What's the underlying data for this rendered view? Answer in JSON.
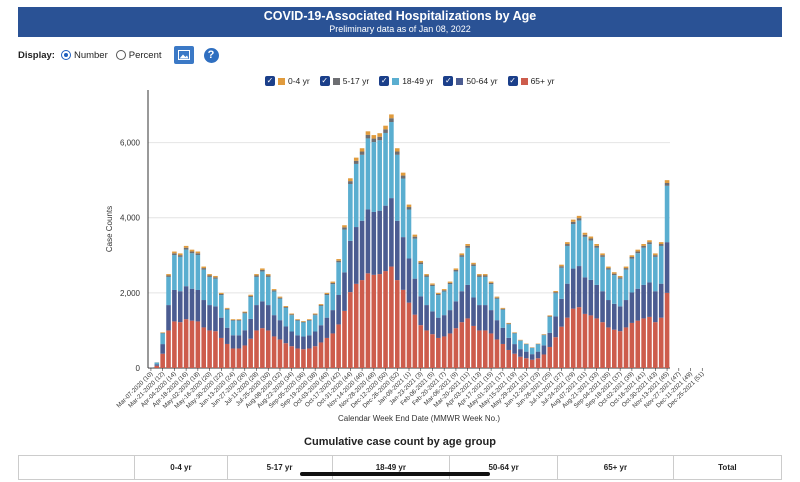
{
  "header": {
    "title": "COVID-19-Associated Hospitalizations by Age",
    "subtitle": "Preliminary data as of Jan 08, 2022"
  },
  "controls": {
    "display_label": "Display:",
    "number_label": "Number",
    "percent_label": "Percent",
    "help_glyph": "?"
  },
  "colors": {
    "age0_4": "#e09b3d",
    "age5_17": "#6d6e72",
    "age18_49": "#5aaed0",
    "age50_64": "#4b5c91",
    "age65": "#cd5c4c"
  },
  "checkbox_glyph": "✓",
  "legend": [
    "0-4 yr",
    "5-17 yr",
    "18-49 yr",
    "50-64 yr",
    "65+ yr"
  ],
  "table": {
    "title": "Cumulative case count by age group",
    "headers": [
      "",
      "0-4 yr",
      "5-17 yr",
      "18-49 yr",
      "50-64 yr",
      "65+ yr",
      "Total"
    ]
  },
  "chart_data": {
    "type": "bar",
    "stacked": true,
    "xlabel": "Calendar Week End Date (MMWR Week No.)",
    "ylabel": "Case Counts",
    "ylim": [
      0,
      7400
    ],
    "yticks": [
      0,
      2000,
      4000,
      6000
    ],
    "tick_labels": [
      "Mar-07-2020 (10)",
      "Mar-21-2020 (12)",
      "Apr-04-2020 (14)",
      "Apr-18-2020 (16)",
      "May-02-2020 (18)",
      "May-16-2020 (20)",
      "May-30-2020 (22)",
      "Jun-13-2020 (24)",
      "Jun-27-2020 (26)",
      "Jul-11-2020 (28)",
      "Jul-25-2020 (30)",
      "Aug-08-2020 (32)",
      "Aug-22-2020 (34)",
      "Sep-05-2020 (36)",
      "Sep-19-2020 (38)",
      "Oct-03-2020 (40)",
      "Oct-17-2020 (42)",
      "Oct-31-2020 (44)",
      "Nov-14-2020 (46)",
      "Nov-28-2020 (48)",
      "Dec-12-2020 (50)",
      "Dec-26-2020 (52)",
      "Jan-09-2021 (1)",
      "Jan-23-2021 (3)",
      "Feb-06-2021 (5)",
      "Feb-20-2021 (7)",
      "Mar-06-2021 (9)",
      "Mar-20-2021 (11)",
      "Apr-03-2021 (13)",
      "Apr-17-2021 (15)",
      "May-01-2021 (17)",
      "May-15-2021 (19)",
      "May-29-2021 (21)",
      "Jun-12-2021 (23)",
      "Jun-26-2021 (25)",
      "Jul-10-2021 (27)",
      "Jul-24-2021 (29)",
      "Aug-07-2021 (31)",
      "Aug-21-2021 (33)",
      "Sep-04-2021 (35)",
      "Sep-18-2021 (37)",
      "Oct-02-2021 (39)",
      "Oct-16-2021 (41)",
      "Oct-30-2021 (43)",
      "Nov-13-2021 (45)",
      "Nov-27-2021 (47)",
      "Dec-11-2021 (49)",
      "Dec-25-2021 (51)"
    ],
    "totals": [
      10,
      150,
      950,
      2500,
      3100,
      3050,
      3250,
      3150,
      3100,
      2700,
      2500,
      2450,
      2000,
      1600,
      1300,
      1300,
      1500,
      1950,
      2500,
      2650,
      2500,
      2100,
      1900,
      1650,
      1450,
      1300,
      1250,
      1300,
      1450,
      1700,
      2000,
      2300,
      2900,
      3800,
      5050,
      5600,
      5850,
      6300,
      6200,
      6250,
      6450,
      6750,
      5850,
      5200,
      4350,
      3550,
      2850,
      2500,
      2250,
      2000,
      2100,
      2300,
      2650,
      3050,
      3300,
      2800,
      2500,
      2500,
      2300,
      1900,
      1600,
      1200,
      950,
      750,
      650,
      550,
      650,
      900,
      1400,
      2050,
      2750,
      3350,
      3950,
      4050,
      3600,
      3500,
      3300,
      3050,
      2700,
      2550,
      2450,
      2700,
      3000,
      3150,
      3300,
      3400,
      3050,
      3350,
      5000
    ],
    "series_shares": {
      "0-4 yr": 0.015,
      "5-17 yr": 0.015,
      "18-49 yr": 0.3,
      "50-64 yr": 0.27,
      "65+ yr": 0.4
    }
  }
}
